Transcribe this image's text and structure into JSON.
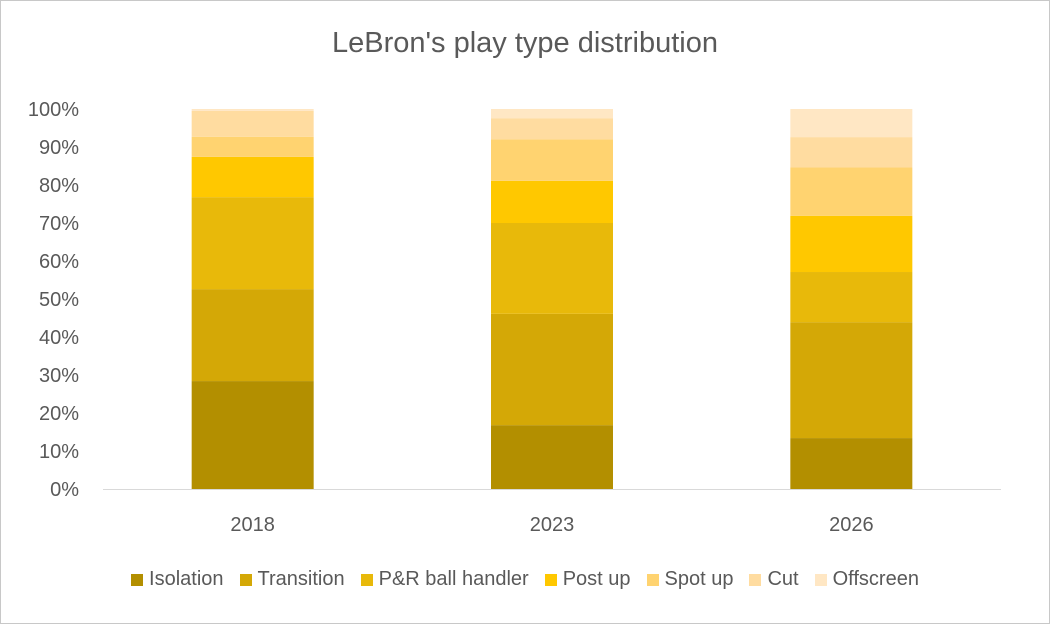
{
  "chart_data": {
    "type": "bar",
    "stacked": true,
    "title": "LeBron's play type distribution",
    "xlabel": "",
    "ylabel": "",
    "ylim": [
      0,
      100
    ],
    "y_ticks": [
      "0%",
      "10%",
      "20%",
      "30%",
      "40%",
      "50%",
      "60%",
      "70%",
      "80%",
      "90%",
      "100%"
    ],
    "categories": [
      "2018",
      "2023",
      "2026"
    ],
    "legend_position": "bottom",
    "series": [
      {
        "name": "Isolation",
        "color": "#B38F00",
        "values": [
          28.4,
          16.8,
          13.4
        ]
      },
      {
        "name": "Transition",
        "color": "#D4A806",
        "values": [
          24.2,
          29.3,
          30.5
        ]
      },
      {
        "name": "P&R ball handler",
        "color": "#E8B90A",
        "values": [
          24.2,
          23.9,
          13.2
        ]
      },
      {
        "name": "Post up",
        "color": "#FFC800",
        "values": [
          10.6,
          11.1,
          14.8
        ]
      },
      {
        "name": "Spot up",
        "color": "#FFD370",
        "values": [
          5.3,
          10.9,
          12.7
        ]
      },
      {
        "name": "Cut",
        "color": "#FFDCA0",
        "values": [
          6.8,
          5.5,
          8.0
        ]
      },
      {
        "name": "Offscreen",
        "color": "#FFE7C4",
        "values": [
          0.5,
          2.5,
          7.4
        ]
      }
    ]
  }
}
